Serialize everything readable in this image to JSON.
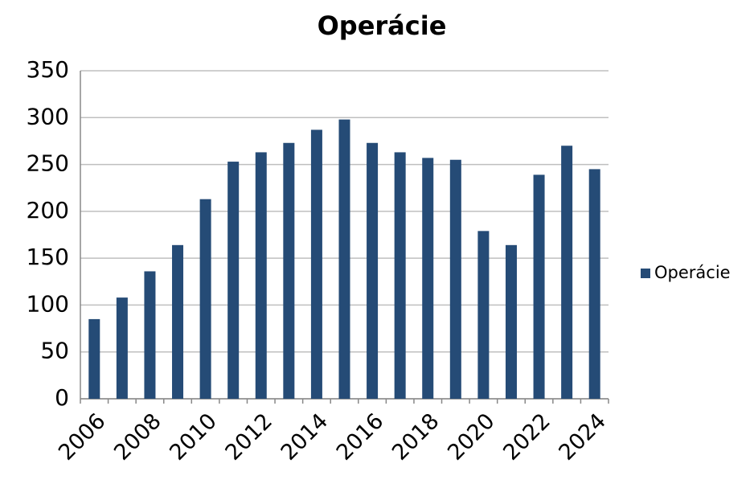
{
  "chart_data": {
    "type": "bar",
    "title": "Operácie",
    "categories": [
      "2006",
      null,
      "2008",
      null,
      "2010",
      null,
      "2012",
      null,
      "2014",
      null,
      "2016",
      null,
      "2018",
      null,
      "2020",
      null,
      "2022",
      null,
      "2024"
    ],
    "series": [
      {
        "name": "Operácie",
        "color": "#254b76",
        "values": [
          85,
          108,
          136,
          164,
          213,
          253,
          263,
          273,
          287,
          298,
          273,
          263,
          257,
          255,
          179,
          164,
          239,
          270,
          245
        ]
      }
    ],
    "ylim": [
      0,
      350
    ],
    "yticks": [
      0,
      50,
      100,
      150,
      200,
      250,
      300,
      350
    ],
    "grid": true,
    "legend": "right"
  }
}
